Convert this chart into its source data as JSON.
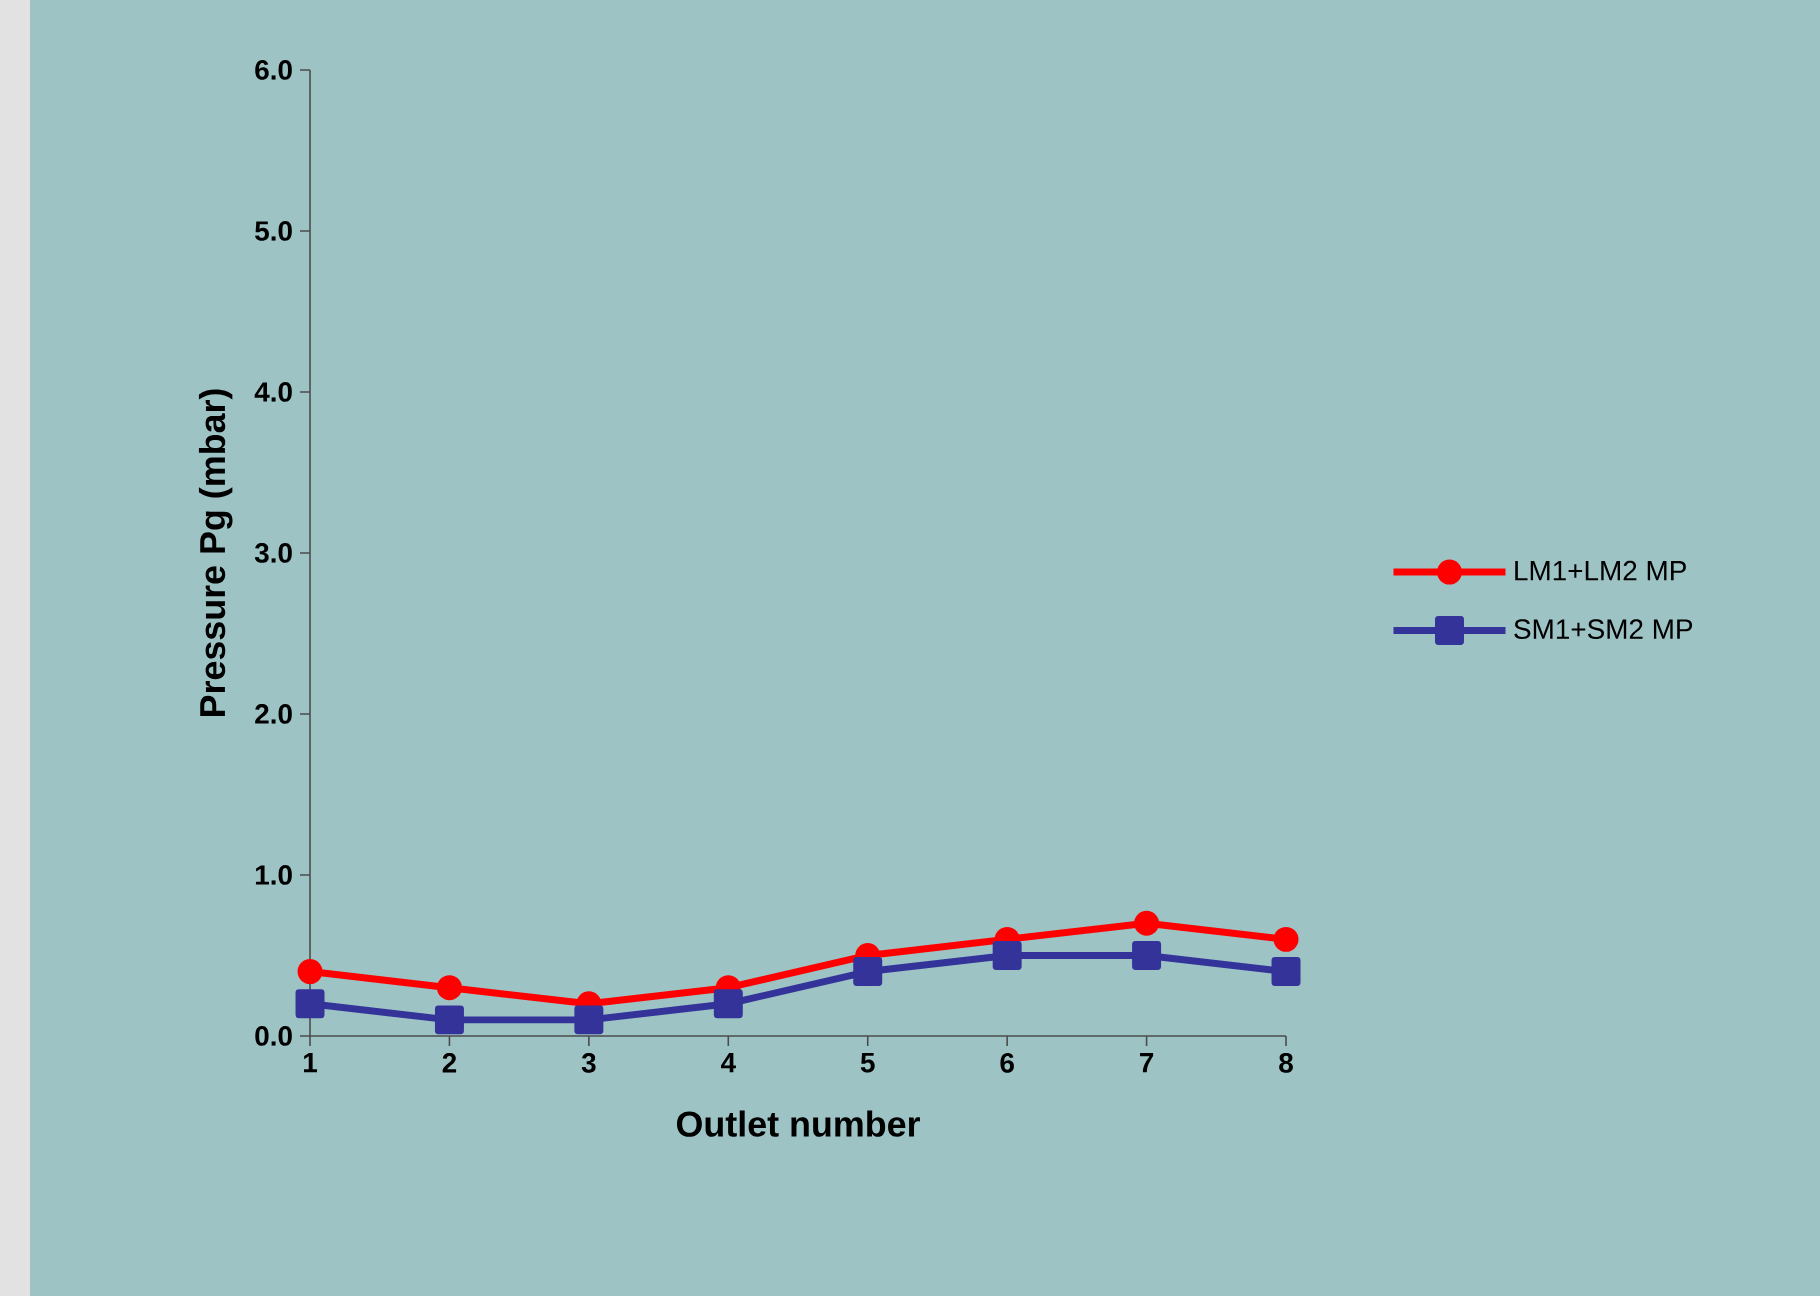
{
  "chart_data": {
    "type": "line",
    "xlabel": "Outlet number",
    "ylabel": "Pressure Pg (mbar)",
    "categories": [
      "1",
      "2",
      "3",
      "4",
      "5",
      "6",
      "7",
      "8"
    ],
    "series": [
      {
        "name": "LM1+LM2 MP",
        "color": "#ff0000",
        "marker": "circle",
        "values": [
          0.4,
          0.3,
          0.2,
          0.3,
          0.5,
          0.6,
          0.7,
          0.6
        ]
      },
      {
        "name": "SM1+SM2 MP",
        "color": "#333399",
        "marker": "square",
        "values": [
          0.2,
          0.1,
          0.1,
          0.2,
          0.4,
          0.5,
          0.5,
          0.4
        ]
      }
    ],
    "ylim": [
      0,
      6
    ],
    "yticks": [
      {
        "value": 0,
        "label": "0.0"
      },
      {
        "value": 1,
        "label": "1.0"
      },
      {
        "value": 2,
        "label": "2.0"
      },
      {
        "value": 3,
        "label": "3.0"
      },
      {
        "value": 4,
        "label": "4.0"
      },
      {
        "value": 5,
        "label": "5.0"
      },
      {
        "value": 6,
        "label": "6.0"
      }
    ],
    "grid": false,
    "legend": "right"
  }
}
